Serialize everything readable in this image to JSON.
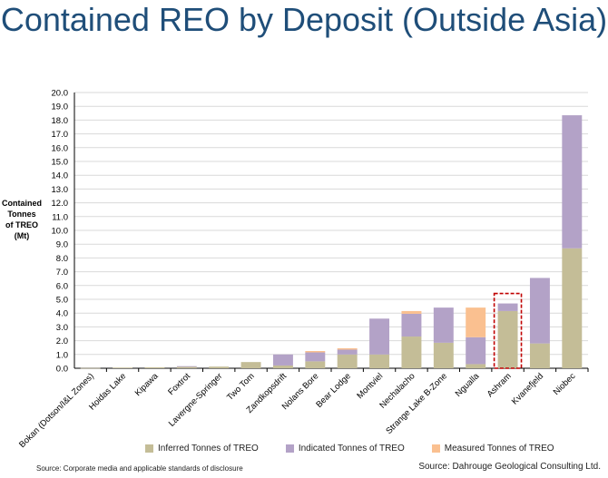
{
  "title": "Contained REO by Deposit (Outside Asia)",
  "ylabel_lines": [
    "Contained",
    "Tonnes",
    "of TREO",
    "(Mt)"
  ],
  "source_left": "Source: Corporate media and applicable standards of disclosure",
  "source_right": "Source: Dahrouge Geological Consulting Ltd.",
  "colors": {
    "inferred": "#c4bd97",
    "indicated": "#b3a2c7",
    "measured": "#fac090",
    "highlight_box": "#c00000",
    "grid": "#d9d9d9",
    "axis": "#000000"
  },
  "chart_data": {
    "type": "bar",
    "stacked": true,
    "categories": [
      "Bokan (Dotson/I&L Zones)",
      "Hoidas Lake",
      "Kipawa",
      "Foxtrot",
      "Lavergne-Springer",
      "Two Tom",
      "Zandkopsdrift",
      "Nolans Bore",
      "Bear Lodge",
      "Montviel",
      "Nechalacho",
      "Strange Lake B-Zone",
      "Ngualla",
      "Ashram",
      "Kvanefjeld",
      "Niobec"
    ],
    "series": [
      {
        "name": "Inferred Tonnes of TREO",
        "values": [
          0.02,
          0.05,
          0.07,
          0.1,
          0.12,
          0.45,
          0.2,
          0.5,
          1.0,
          1.0,
          2.3,
          1.85,
          0.3,
          4.15,
          1.8,
          8.7
        ]
      },
      {
        "name": "Indicated Tonnes of TREO",
        "values": [
          0.0,
          0.0,
          0.0,
          0.05,
          0.0,
          0.0,
          0.8,
          0.65,
          0.35,
          2.6,
          1.65,
          2.55,
          1.95,
          0.55,
          4.75,
          9.65
        ]
      },
      {
        "name": "Measured Tonnes of TREO",
        "values": [
          0.0,
          0.0,
          0.0,
          0.0,
          0.0,
          0.0,
          0.0,
          0.1,
          0.1,
          0.0,
          0.2,
          0.0,
          2.15,
          0.0,
          0.0,
          0.0
        ]
      }
    ],
    "ylim": [
      0,
      20
    ],
    "ytick_labels": [
      "0.0",
      "1.0",
      "2.0",
      "3.0",
      "4.0",
      "5.0",
      "6.0",
      "7.0",
      "8.0",
      "9.0",
      "10.0",
      "11.0",
      "12.0",
      "13.0",
      "14.0",
      "15.0",
      "16.0",
      "17.0",
      "18.0",
      "19.0",
      "20.0"
    ],
    "highlight_category": "Ashram",
    "grid": true,
    "legend_position": "bottom"
  }
}
